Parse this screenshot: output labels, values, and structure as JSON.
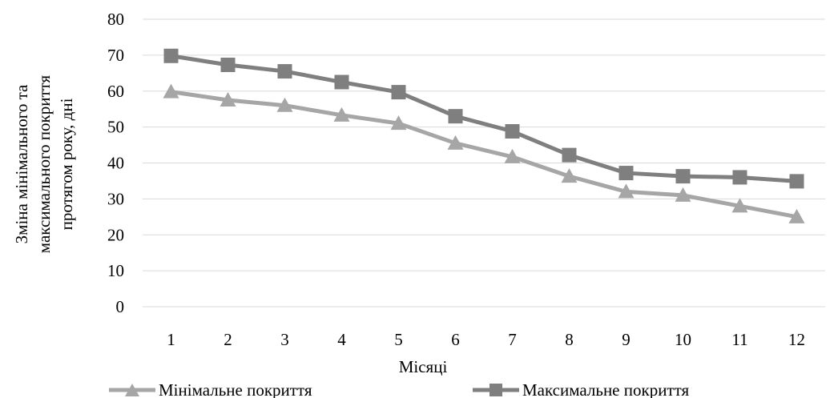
{
  "chart_data": {
    "type": "line",
    "xlabel": "Місяці",
    "ylabel": [
      "Зміна мінімального та",
      "максимального покриття",
      "протягом року, дні"
    ],
    "categories": [
      "1",
      "2",
      "3",
      "4",
      "5",
      "6",
      "7",
      "8",
      "9",
      "10",
      "11",
      "12"
    ],
    "ylim": [
      0,
      80
    ],
    "yticks": [
      0,
      10,
      20,
      30,
      40,
      50,
      60,
      70,
      80
    ],
    "grid": true,
    "legend_position": "bottom",
    "series": [
      {
        "name": "Мінімальне покриття",
        "marker": "triangle",
        "color": "#a6a6a6",
        "values": [
          59.8,
          57.5,
          56,
          53.3,
          51,
          45.5,
          41.7,
          36.3,
          32,
          31,
          28,
          25
        ]
      },
      {
        "name": "Максимальне покриття",
        "marker": "square",
        "color": "#7f7f7f",
        "values": [
          69.8,
          67.3,
          65.5,
          62.5,
          59.7,
          53,
          48.8,
          42.2,
          37.2,
          36.3,
          36,
          34.9
        ]
      }
    ]
  }
}
